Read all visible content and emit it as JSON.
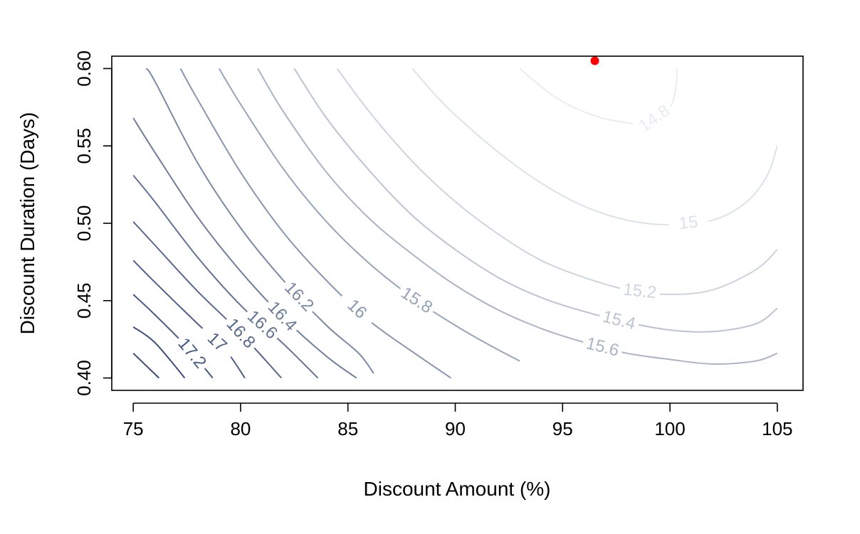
{
  "chart_data": {
    "type": "contour",
    "title": "",
    "xlabel": "Discount Amount (%)",
    "ylabel": "Discount Duration (Days)",
    "xlim": [
      74,
      106.2
    ],
    "ylim": [
      0.392,
      0.608
    ],
    "x_ticks": [
      75,
      80,
      85,
      90,
      95,
      100,
      105
    ],
    "x_tick_labels": [
      "75",
      "80",
      "85",
      "90",
      "95",
      "100",
      "105"
    ],
    "y_ticks": [
      0.4,
      0.45,
      0.5,
      0.55,
      0.6
    ],
    "y_tick_labels": [
      "0.40",
      "0.45",
      "0.50",
      "0.55",
      "0.60"
    ],
    "grid": false,
    "legend": "none",
    "line_color_scale": [
      "#eef0f4",
      "#3a4f7a"
    ],
    "highlight_point": {
      "x": 96.5,
      "y": 0.605,
      "color": "#ff0000"
    },
    "levels": [
      {
        "level": 14.8,
        "label": "14.8",
        "color": "#e9ecf2",
        "points": [
          [
            93,
            0.6
          ],
          [
            94.5,
            0.583
          ],
          [
            96,
            0.572
          ],
          [
            97.5,
            0.566
          ],
          [
            99,
            0.565
          ],
          [
            100,
            0.575
          ],
          [
            100.3,
            0.59
          ],
          [
            100.3,
            0.6
          ]
        ]
      },
      {
        "level": 15.0,
        "label": "15",
        "color": "#dde2ea",
        "points": [
          [
            88,
            0.6
          ],
          [
            89,
            0.584
          ],
          [
            90,
            0.57
          ],
          [
            92,
            0.546
          ],
          [
            94,
            0.526
          ],
          [
            96,
            0.511
          ],
          [
            98,
            0.502
          ],
          [
            100,
            0.499
          ],
          [
            102,
            0.502
          ],
          [
            103.5,
            0.513
          ],
          [
            104.5,
            0.53
          ],
          [
            105,
            0.55
          ]
        ]
      },
      {
        "level": 15.2,
        "label": "15.2",
        "color": "#ced4df",
        "points": [
          [
            84.5,
            0.6
          ],
          [
            86,
            0.572
          ],
          [
            88,
            0.54
          ],
          [
            90,
            0.514
          ],
          [
            92,
            0.493
          ],
          [
            94,
            0.476
          ],
          [
            96,
            0.465
          ],
          [
            98,
            0.457
          ],
          [
            100,
            0.454
          ],
          [
            102,
            0.457
          ],
          [
            104,
            0.47
          ],
          [
            105,
            0.483
          ]
        ]
      },
      {
        "level": 15.4,
        "label": "15.4",
        "color": "#bcc4d3",
        "points": [
          [
            82.5,
            0.6
          ],
          [
            84,
            0.568
          ],
          [
            86,
            0.534
          ],
          [
            88,
            0.505
          ],
          [
            90,
            0.483
          ],
          [
            92,
            0.465
          ],
          [
            94,
            0.452
          ],
          [
            96,
            0.443
          ],
          [
            98,
            0.436
          ],
          [
            100,
            0.431
          ],
          [
            102,
            0.43
          ],
          [
            104,
            0.435
          ],
          [
            105,
            0.445
          ]
        ]
      },
      {
        "level": 15.6,
        "label": "15.6",
        "color": "#aab4c6",
        "points": [
          [
            80.8,
            0.6
          ],
          [
            82,
            0.572
          ],
          [
            84,
            0.533
          ],
          [
            86,
            0.503
          ],
          [
            88,
            0.48
          ],
          [
            90,
            0.46
          ],
          [
            92,
            0.444
          ],
          [
            94,
            0.432
          ],
          [
            96,
            0.423
          ],
          [
            98,
            0.416
          ],
          [
            100,
            0.412
          ],
          [
            102,
            0.409
          ],
          [
            104,
            0.411
          ],
          [
            105,
            0.416
          ]
        ]
      },
      {
        "level": 15.8,
        "label": "15.8",
        "color": "#98a4ba",
        "points": [
          [
            79,
            0.6
          ],
          [
            80,
            0.577
          ],
          [
            82,
            0.535
          ],
          [
            84,
            0.501
          ],
          [
            86,
            0.474
          ],
          [
            88,
            0.452
          ],
          [
            90,
            0.434
          ],
          [
            91.5,
            0.422
          ],
          [
            93,
            0.411
          ]
        ]
      },
      {
        "level": 16.0,
        "label": "16",
        "color": "#8896af",
        "points": [
          [
            77.2,
            0.6
          ],
          [
            78,
            0.58
          ],
          [
            80,
            0.533
          ],
          [
            82,
            0.494
          ],
          [
            84,
            0.463
          ],
          [
            86,
            0.437
          ],
          [
            88,
            0.417
          ],
          [
            89.8,
            0.4
          ]
        ]
      },
      {
        "level": 16.2,
        "label": "16.2",
        "color": "#7a89a4",
        "points": [
          [
            75.6,
            0.6
          ],
          [
            76,
            0.592
          ],
          [
            78,
            0.539
          ],
          [
            80,
            0.497
          ],
          [
            82,
            0.463
          ],
          [
            84,
            0.434
          ],
          [
            85.5,
            0.416
          ],
          [
            86.2,
            0.403
          ]
        ]
      },
      {
        "level": 16.4,
        "label": "16.4",
        "color": "#6d7d9b",
        "points": [
          [
            75,
            0.568
          ],
          [
            76,
            0.546
          ],
          [
            78,
            0.504
          ],
          [
            80,
            0.469
          ],
          [
            82,
            0.439
          ],
          [
            84,
            0.414
          ],
          [
            85.4,
            0.4
          ]
        ]
      },
      {
        "level": 16.6,
        "label": "16.6",
        "color": "#627396",
        "points": [
          [
            75,
            0.531
          ],
          [
            76,
            0.514
          ],
          [
            78,
            0.478
          ],
          [
            80,
            0.447
          ],
          [
            82,
            0.422
          ],
          [
            83.6,
            0.4
          ]
        ]
      },
      {
        "level": 16.8,
        "label": "16.8",
        "color": "#586990",
        "points": [
          [
            75,
            0.501
          ],
          [
            76,
            0.486
          ],
          [
            78,
            0.456
          ],
          [
            80,
            0.429
          ],
          [
            81.9,
            0.4
          ]
        ]
      },
      {
        "level": 17.0,
        "label": "17",
        "color": "#4f618a",
        "points": [
          [
            75,
            0.476
          ],
          [
            76,
            0.462
          ],
          [
            78,
            0.435
          ],
          [
            79.3,
            0.418
          ],
          [
            80.2,
            0.4
          ]
        ]
      },
      {
        "level": 17.2,
        "label": "17.2",
        "color": "#465884",
        "points": [
          [
            75,
            0.454
          ],
          [
            76,
            0.441
          ],
          [
            77.5,
            0.42
          ],
          [
            78.7,
            0.4
          ]
        ]
      },
      {
        "level": 17.4,
        "label": "",
        "color": "#3f517f",
        "points": [
          [
            75,
            0.433
          ],
          [
            76,
            0.423
          ],
          [
            77.4,
            0.4
          ]
        ]
      },
      {
        "level": 17.6,
        "label": "",
        "color": "#3a4b79",
        "points": [
          [
            75,
            0.416
          ],
          [
            76.2,
            0.4
          ]
        ]
      }
    ]
  }
}
